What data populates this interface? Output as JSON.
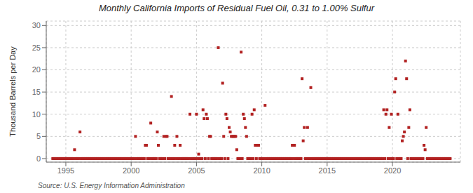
{
  "chart_data": {
    "type": "scatter",
    "title": "Monthly California Imports of Residual Fuel Oil, 0.31 to 1.00% Sulfur",
    "y_label": "Thousand Barrels per Day",
    "annotations": [
      "Source: U.S. Energy Information Administration"
    ],
    "color": "#b22222",
    "marker": "square",
    "grid": true,
    "xlim": [
      1993.5,
      2025.2
    ],
    "ylim": [
      -0.8,
      31
    ],
    "xticks": [
      1995,
      2000,
      2005,
      2010,
      2015,
      2020
    ],
    "yticks": [
      0,
      5,
      10,
      15,
      20,
      25,
      30
    ],
    "x": [
      1994.0,
      1994.083,
      1994.167,
      1994.25,
      1994.333,
      1994.417,
      1994.5,
      1994.583,
      1994.667,
      1994.75,
      1994.833,
      1994.917,
      1995.0,
      1995.083,
      1995.167,
      1995.25,
      1995.333,
      1995.417,
      1995.5,
      1995.583,
      1995.667,
      1995.75,
      1995.833,
      1995.917,
      1996.0,
      1996.083,
      1996.167,
      1996.25,
      1996.333,
      1996.417,
      1996.5,
      1996.583,
      1996.667,
      1996.75,
      1996.833,
      1996.917,
      1997.0,
      1997.083,
      1997.167,
      1997.25,
      1997.333,
      1997.417,
      1997.5,
      1997.583,
      1997.667,
      1997.75,
      1997.833,
      1997.917,
      1998.0,
      1998.083,
      1998.167,
      1998.25,
      1998.333,
      1998.417,
      1998.5,
      1998.583,
      1998.667,
      1998.75,
      1998.833,
      1998.917,
      1999.0,
      1999.083,
      1999.167,
      1999.25,
      1999.333,
      1999.417,
      1999.5,
      1999.583,
      1999.667,
      1999.75,
      1999.833,
      1999.917,
      2000.0,
      2000.083,
      2000.167,
      2000.25,
      2000.333,
      2000.417,
      2000.5,
      2000.583,
      2000.667,
      2000.75,
      2000.833,
      2000.917,
      2001.0,
      2001.083,
      2001.167,
      2001.25,
      2001.333,
      2001.417,
      2001.5,
      2001.583,
      2001.667,
      2001.75,
      2001.833,
      2001.917,
      2002.0,
      2002.083,
      2002.167,
      2002.25,
      2002.333,
      2002.417,
      2002.5,
      2002.583,
      2002.667,
      2002.75,
      2002.833,
      2002.917,
      2003.0,
      2003.083,
      2003.167,
      2003.25,
      2003.333,
      2003.417,
      2003.5,
      2003.583,
      2003.667,
      2003.75,
      2003.833,
      2003.917,
      2004.0,
      2004.083,
      2004.167,
      2004.25,
      2004.333,
      2004.417,
      2004.5,
      2004.583,
      2004.667,
      2004.75,
      2004.833,
      2004.917,
      2005.0,
      2005.083,
      2005.167,
      2005.25,
      2005.333,
      2005.417,
      2005.5,
      2005.583,
      2005.667,
      2005.75,
      2005.833,
      2005.917,
      2006.0,
      2006.083,
      2006.167,
      2006.25,
      2006.333,
      2006.417,
      2006.5,
      2006.583,
      2006.667,
      2006.75,
      2006.833,
      2006.917,
      2007.0,
      2007.083,
      2007.167,
      2007.25,
      2007.333,
      2007.417,
      2007.5,
      2007.583,
      2007.667,
      2007.75,
      2007.833,
      2007.917,
      2008.0,
      2008.083,
      2008.167,
      2008.25,
      2008.333,
      2008.417,
      2008.5,
      2008.583,
      2008.667,
      2008.75,
      2008.833,
      2008.917,
      2009.0,
      2009.083,
      2009.167,
      2009.25,
      2009.333,
      2009.417,
      2009.5,
      2009.583,
      2009.667,
      2009.75,
      2009.833,
      2009.917,
      2010.0,
      2010.083,
      2010.167,
      2010.25,
      2010.333,
      2010.417,
      2010.5,
      2010.583,
      2010.667,
      2010.75,
      2010.833,
      2010.917,
      2011.0,
      2011.083,
      2011.167,
      2011.25,
      2011.333,
      2011.417,
      2011.5,
      2011.583,
      2011.667,
      2011.75,
      2011.833,
      2011.917,
      2012.0,
      2012.083,
      2012.167,
      2012.25,
      2012.333,
      2012.417,
      2012.5,
      2012.583,
      2012.667,
      2012.75,
      2012.833,
      2012.917,
      2013.0,
      2013.083,
      2013.167,
      2013.25,
      2013.333,
      2013.417,
      2013.5,
      2013.583,
      2013.667,
      2013.75,
      2013.833,
      2013.917,
      2014.0,
      2014.083,
      2014.167,
      2014.25,
      2014.333,
      2014.417,
      2014.5,
      2014.583,
      2014.667,
      2014.75,
      2014.833,
      2014.917,
      2015.0,
      2015.083,
      2015.167,
      2015.25,
      2015.333,
      2015.417,
      2015.5,
      2015.583,
      2015.667,
      2015.75,
      2015.833,
      2015.917,
      2016.0,
      2016.083,
      2016.167,
      2016.25,
      2016.333,
      2016.417,
      2016.5,
      2016.583,
      2016.667,
      2016.75,
      2016.833,
      2016.917,
      2017.0,
      2017.083,
      2017.167,
      2017.25,
      2017.333,
      2017.417,
      2017.5,
      2017.583,
      2017.667,
      2017.75,
      2017.833,
      2017.917,
      2018.0,
      2018.083,
      2018.167,
      2018.25,
      2018.333,
      2018.417,
      2018.5,
      2018.583,
      2018.667,
      2018.75,
      2018.833,
      2018.917,
      2019.0,
      2019.083,
      2019.167,
      2019.25,
      2019.333,
      2019.417,
      2019.5,
      2019.583,
      2019.667,
      2019.75,
      2019.833,
      2019.917,
      2020.0,
      2020.083,
      2020.167,
      2020.25,
      2020.333,
      2020.417,
      2020.5,
      2020.583,
      2020.667,
      2020.75,
      2020.833,
      2020.917,
      2021.0,
      2021.083,
      2021.167,
      2021.25,
      2021.333,
      2021.417,
      2021.5,
      2021.583,
      2021.667,
      2021.75,
      2021.833,
      2021.917,
      2022.0,
      2022.083,
      2022.167,
      2022.25,
      2022.333,
      2022.417,
      2022.5,
      2022.583,
      2022.667,
      2022.75,
      2022.833,
      2022.917,
      2023.0,
      2023.083,
      2023.167,
      2023.25,
      2023.333,
      2023.417,
      2023.5,
      2023.583,
      2023.667,
      2023.75,
      2023.833,
      2023.917,
      2024.0,
      2024.083,
      2024.167,
      2024.25,
      2024.333,
      2024.417
    ],
    "values": [
      0,
      0,
      0,
      0,
      0,
      0,
      0,
      0,
      0,
      0,
      0,
      0,
      0,
      0,
      0,
      0,
      0,
      0,
      0,
      0,
      2,
      0,
      0,
      0,
      0,
      6,
      0,
      0,
      0,
      0,
      0,
      0,
      0,
      0,
      0,
      0,
      0,
      0,
      0,
      0,
      0,
      0,
      0,
      0,
      0,
      0,
      0,
      0,
      0,
      0,
      0,
      0,
      0,
      0,
      0,
      0,
      0,
      0,
      0,
      0,
      0,
      0,
      0,
      0,
      0,
      0,
      0,
      0,
      0,
      0,
      0,
      0,
      0,
      0,
      0,
      0,
      5,
      0,
      0,
      0,
      0,
      0,
      0,
      0,
      0,
      3,
      3,
      0,
      0,
      0,
      8,
      0,
      0,
      0,
      0,
      0,
      6,
      3,
      0,
      0,
      0,
      0,
      5,
      0,
      5,
      5,
      0,
      0,
      0,
      14,
      0,
      0,
      3,
      0,
      5,
      0,
      0,
      3,
      0,
      0,
      0,
      0,
      0,
      0,
      0,
      0,
      10,
      0,
      0,
      0,
      0,
      0,
      10,
      0,
      1,
      0,
      0,
      0,
      11,
      9,
      0,
      10,
      9,
      0,
      5,
      5,
      0,
      0,
      0,
      0,
      0,
      0,
      25,
      0,
      0,
      0,
      17,
      5,
      0,
      10,
      9,
      0,
      7,
      6,
      5,
      5,
      5,
      5,
      5,
      2,
      0,
      0,
      0,
      24,
      0,
      10,
      9,
      7,
      5,
      0,
      0,
      0,
      0,
      10,
      0,
      11,
      3,
      0,
      3,
      3,
      0,
      0,
      0,
      0,
      0,
      12,
      0,
      0,
      0,
      0,
      0,
      0,
      0,
      0,
      0,
      0,
      0,
      0,
      0,
      0,
      0,
      0,
      0,
      0,
      0,
      0,
      0,
      0,
      0,
      0,
      3,
      0,
      3,
      0,
      0,
      0,
      0,
      0,
      0,
      18,
      4,
      7,
      0,
      0,
      7,
      0,
      0,
      16,
      0,
      0,
      0,
      0,
      0,
      0,
      0,
      0,
      0,
      0,
      0,
      0,
      0,
      0,
      0,
      0,
      0,
      0,
      0,
      0,
      0,
      0,
      0,
      0,
      0,
      0,
      0,
      0,
      0,
      0,
      0,
      0,
      0,
      0,
      0,
      0,
      0,
      0,
      0,
      0,
      0,
      0,
      0,
      0,
      0,
      0,
      0,
      0,
      0,
      0,
      0,
      0,
      0,
      0,
      0,
      0,
      0,
      0,
      0,
      0,
      0,
      0,
      0,
      0,
      0,
      0,
      11,
      0,
      10,
      11,
      0,
      7,
      0,
      10,
      0,
      0,
      15,
      18,
      0,
      10,
      0,
      0,
      0,
      4,
      5,
      6,
      22,
      18,
      0,
      7,
      11,
      0,
      0,
      0,
      0,
      0,
      0,
      0,
      0,
      0,
      0,
      0,
      0,
      3,
      2,
      7,
      0,
      0,
      0,
      0,
      0,
      0,
      0,
      0,
      0,
      0,
      0,
      0,
      0,
      0,
      0,
      0,
      0,
      0,
      0,
      0,
      0,
      0
    ]
  }
}
